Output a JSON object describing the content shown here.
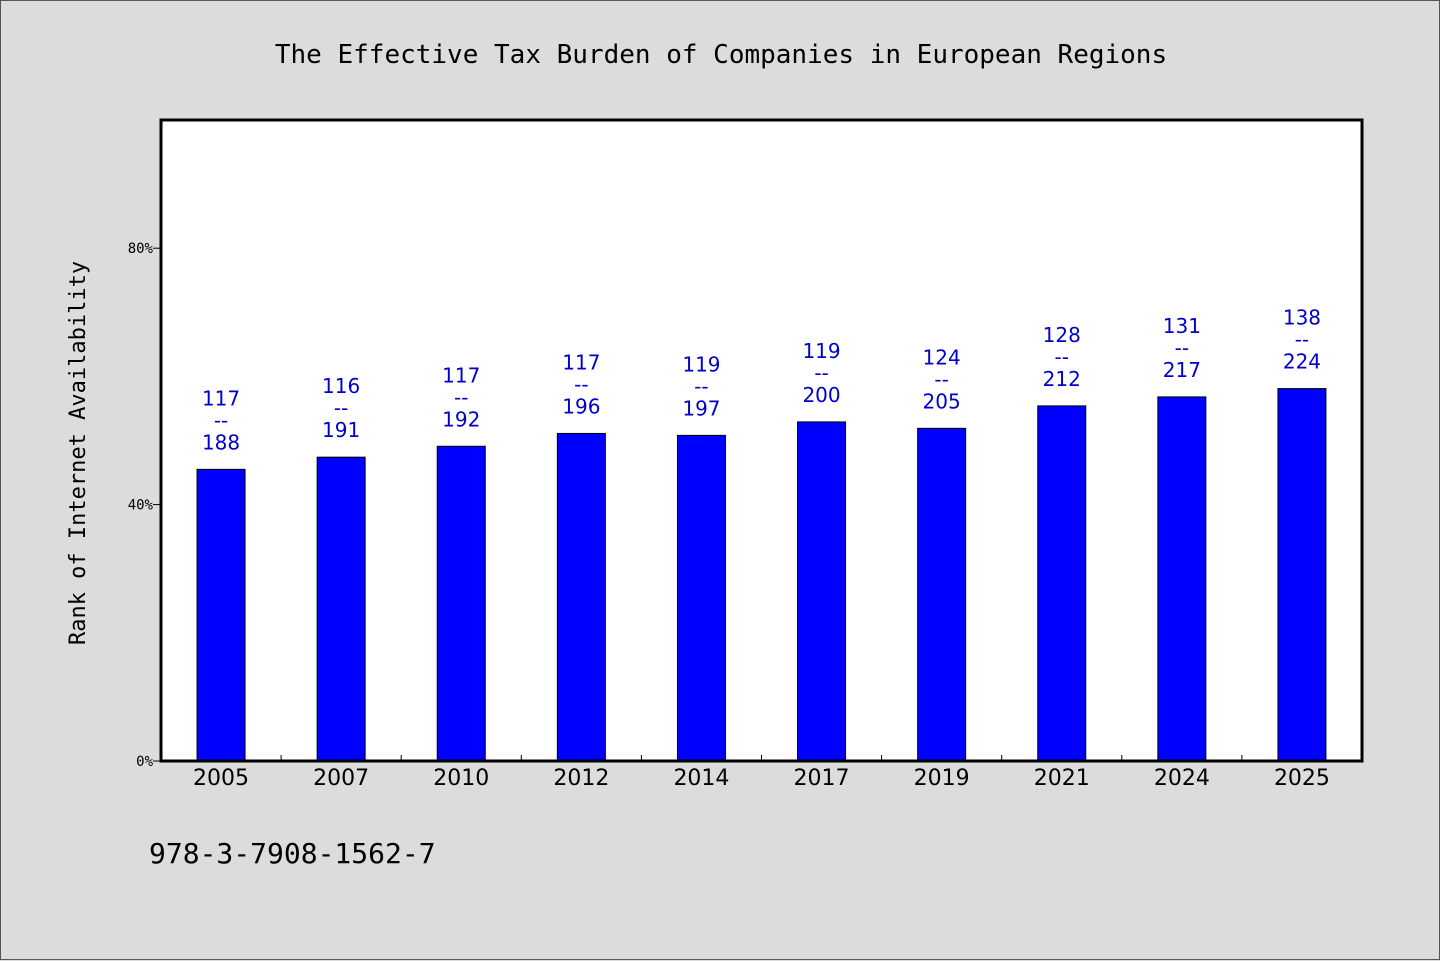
{
  "chart_data": {
    "type": "bar",
    "title": "The Effective Tax Burden of Companies in European Regions",
    "xlabel": "",
    "ylabel": "Rank of Internet Availability",
    "categories": [
      "2005",
      "2007",
      "2010",
      "2012",
      "2014",
      "2017",
      "2019",
      "2021",
      "2024",
      "2025"
    ],
    "values": [
      45.5,
      47.4,
      49.1,
      51.1,
      50.8,
      52.9,
      51.9,
      55.4,
      56.8,
      58.1
    ],
    "data_labels": [
      [
        "117",
        "--",
        "188"
      ],
      [
        "116",
        "--",
        "191"
      ],
      [
        "117",
        "--",
        "192"
      ],
      [
        "117",
        "--",
        "196"
      ],
      [
        "119",
        "--",
        "197"
      ],
      [
        "119",
        "--",
        "200"
      ],
      [
        "124",
        "--",
        "205"
      ],
      [
        "128",
        "--",
        "212"
      ],
      [
        "131",
        "--",
        "217"
      ],
      [
        "138",
        "--",
        "224"
      ]
    ],
    "ylim": [
      0,
      100
    ],
    "yticks": [
      0,
      40,
      80
    ],
    "ytick_labels": [
      "0%",
      "40%",
      "80%"
    ],
    "grid": false,
    "legend": "none",
    "bar_color": "#0000ff",
    "label_color": "#0000cc"
  },
  "annotation": "978-3-7908-1562-7"
}
